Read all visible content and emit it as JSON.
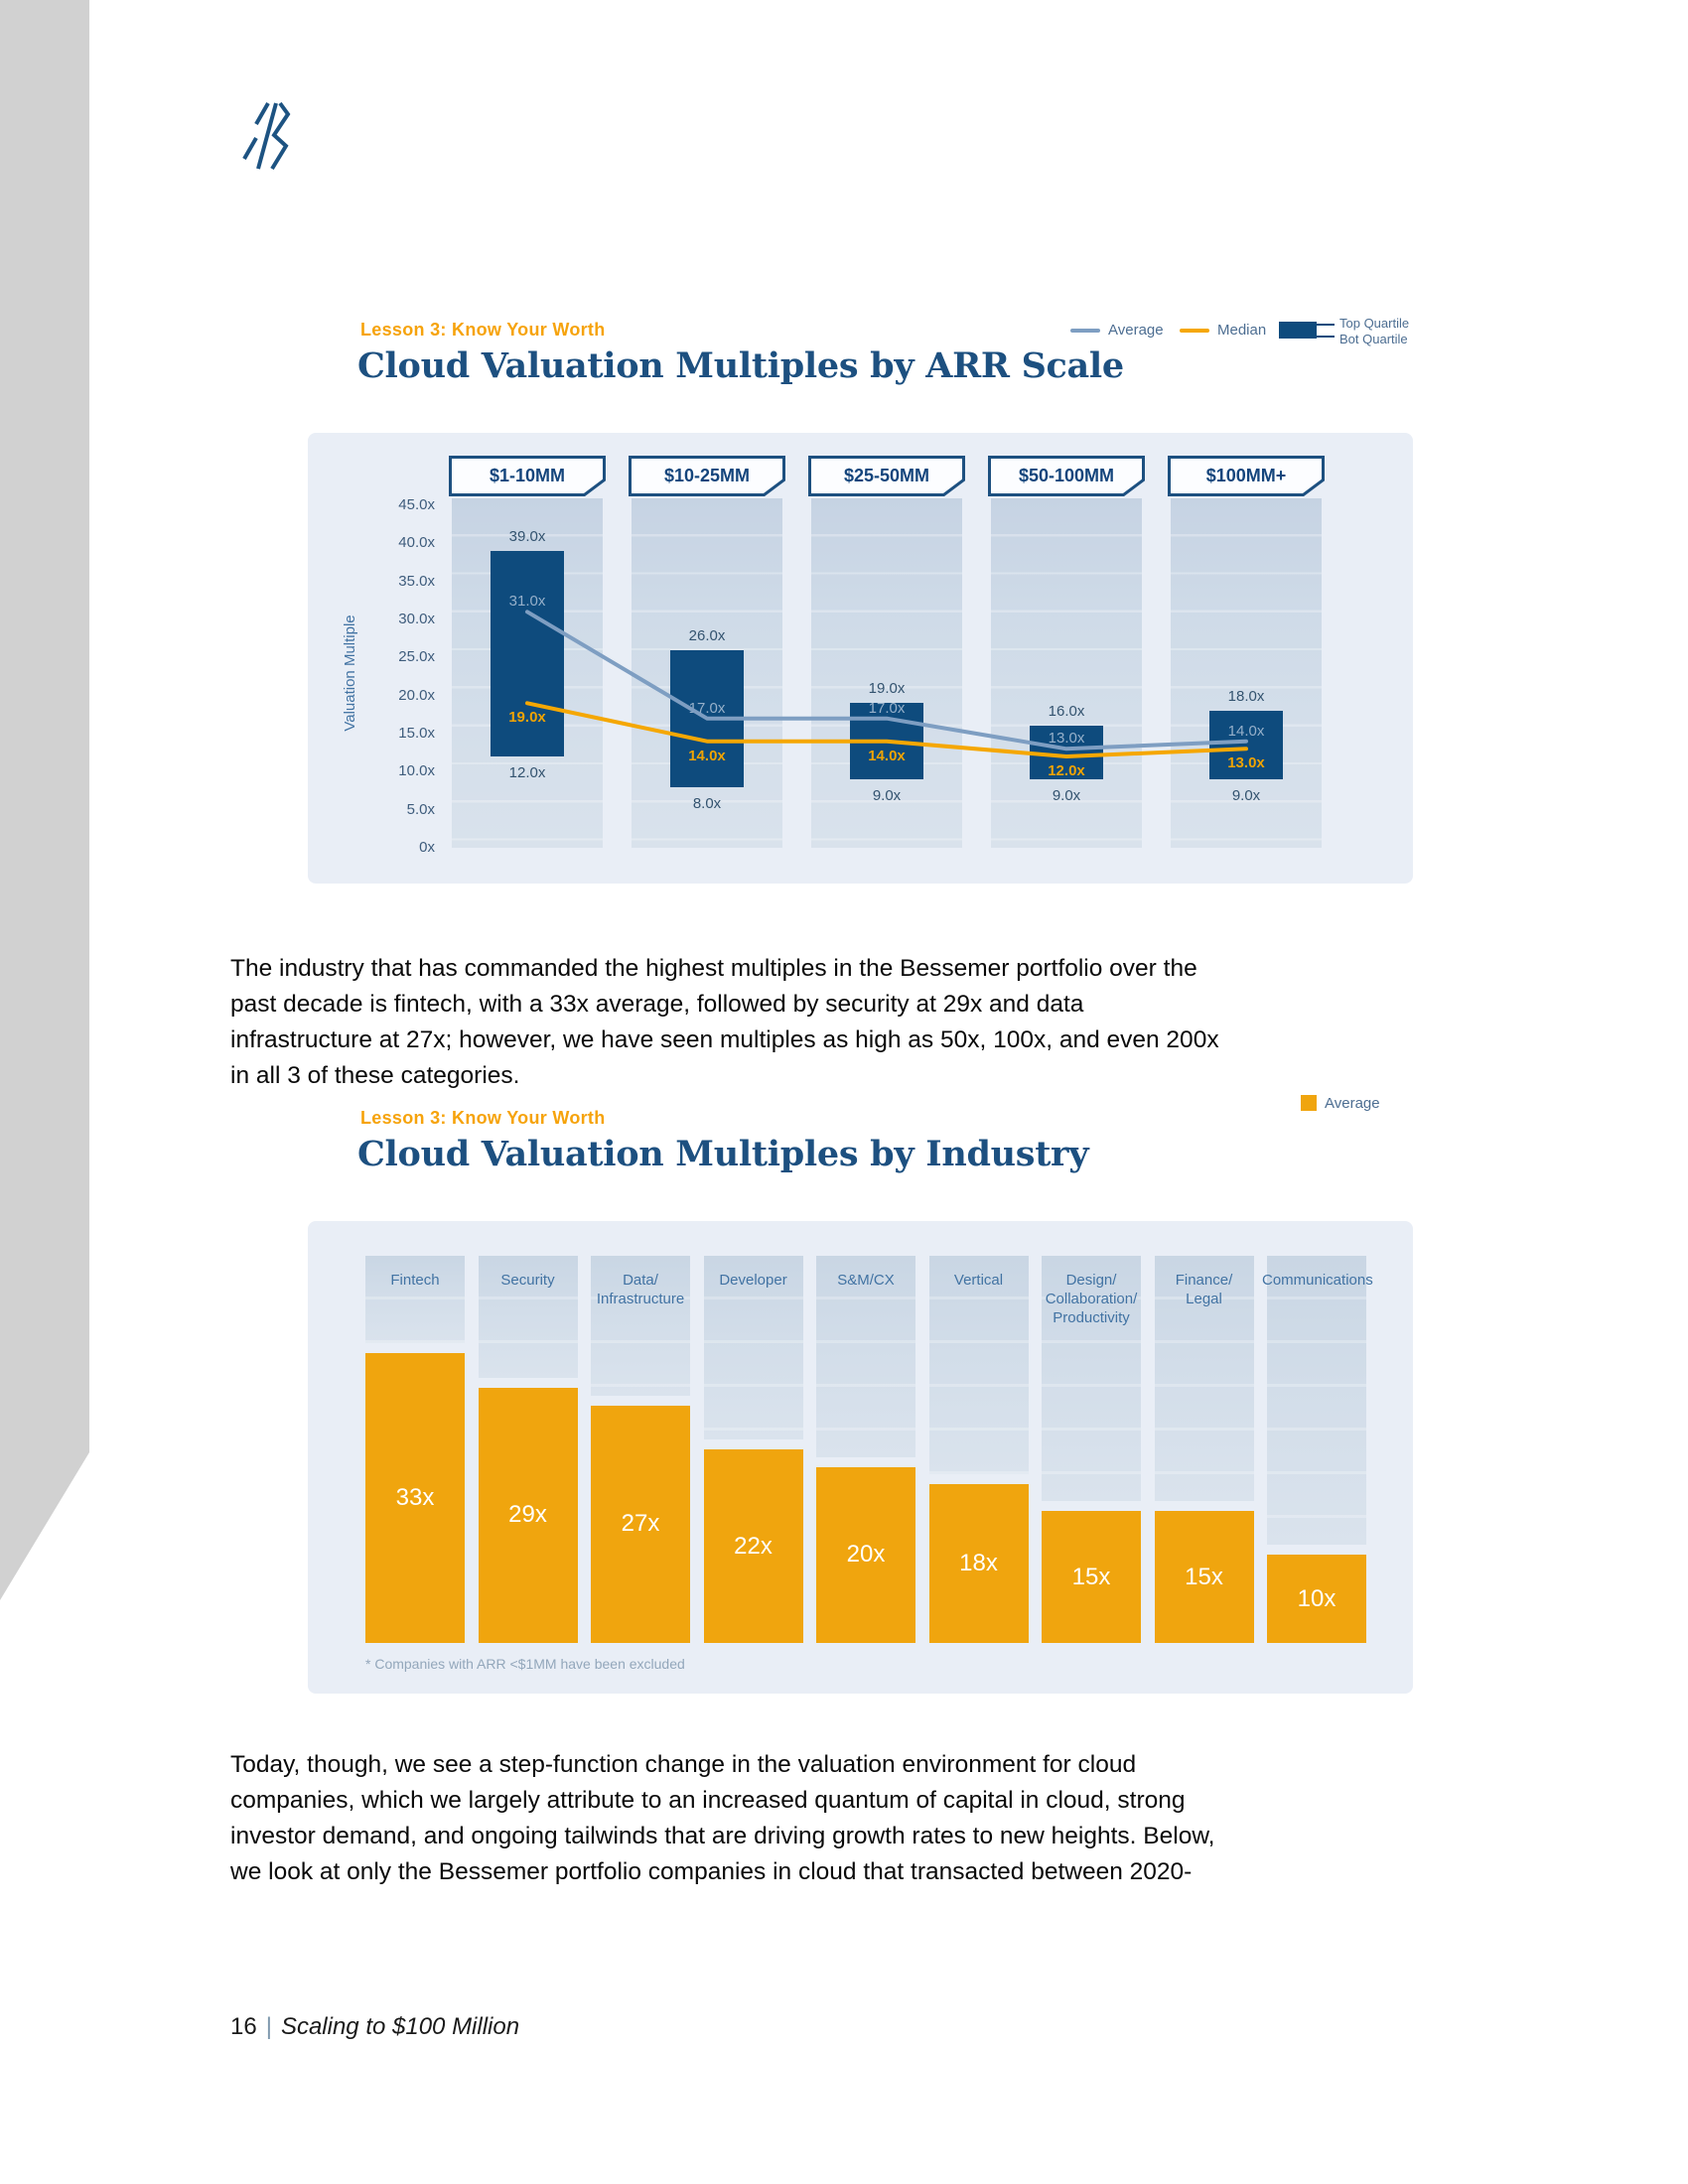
{
  "brand": {
    "logo_name": "bessemer-mark"
  },
  "sections": {
    "arr_chart": {
      "eyebrow": "Lesson 3: Know Your Worth",
      "title": "Cloud Valuation Multiples by ARR Scale",
      "legend": {
        "average_label": "Average",
        "median_label": "Median",
        "top_quartile_label": "Top Quartile",
        "bot_quartile_label": "Bot Quartile"
      }
    },
    "paragraph_1": "The industry that has commanded the highest multiples in the Bessemer portfolio over the\npast decade is fintech, with a 33x average, followed by security at 29x and data\ninfrastructure at 27x; however, we have seen multiples as high as 50x, 100x, and even 200x\nin all 3 of these categories.",
    "industry_chart": {
      "eyebrow": "Lesson 3: Know Your Worth",
      "title": "Cloud Valuation Multiples by Industry",
      "legend": {
        "average_label": "Average"
      },
      "footnote": "* Companies with ARR <$1MM have been excluded"
    },
    "paragraph_2": "Today, though, we see a step-function change in the valuation environment for cloud\ncompanies, which we largely attribute to an increased quantum of capital in cloud, strong\ninvestor demand, and ongoing tailwinds that are driving growth rates to new heights. Below,\nwe look at only the Bessemer portfolio companies in cloud that transacted between 2020-",
    "footer": {
      "page_number": "16",
      "separator": "|",
      "booklet_title": "Scaling to $100 Million"
    }
  },
  "colors": {
    "navy_bar": "#0E4B7D",
    "title_navy": "#1D5080",
    "orange": "#F0A50E",
    "median_orange": "#F5A702",
    "average_line": "#7E9EC2",
    "panel_bg": "#E9EEF6",
    "column_band": "#CFDBE8",
    "left_strip": "#D1D1D1"
  },
  "chart_data": [
    {
      "type": "bar",
      "title": "Cloud Valuation Multiples by ARR Scale",
      "categories": [
        "$1-10MM",
        "$10-25MM",
        "$25-50MM",
        "$50-100MM",
        "$100MM+"
      ],
      "series": [
        {
          "name": "Top Quartile",
          "values": [
            39,
            26,
            19,
            16,
            18
          ]
        },
        {
          "name": "Bot Quartile",
          "values": [
            12,
            8,
            9,
            9,
            9
          ]
        },
        {
          "name": "Average",
          "values": [
            31,
            17,
            17,
            13,
            14
          ]
        },
        {
          "name": "Median",
          "values": [
            19,
            14,
            14,
            12,
            13
          ]
        }
      ],
      "xlabel": "",
      "ylabel": "Valuation Multiple",
      "ylim": [
        0,
        45
      ],
      "ytick_step": 5,
      "value_suffix": ".0x",
      "zero_tick_label": "0x",
      "grid": false,
      "legend_position": "top-right"
    },
    {
      "type": "bar",
      "title": "Cloud Valuation Multiples by Industry",
      "categories": [
        "Fintech",
        "Security",
        "Data/\nInfrastructure",
        "Developer",
        "S&M/CX",
        "Vertical",
        "Design/\nCollaboration/\nProductivity",
        "Finance/\nLegal",
        "Communications"
      ],
      "values": [
        33,
        29,
        27,
        22,
        20,
        18,
        15,
        15,
        10
      ],
      "series_name": "Average",
      "xlabel": "",
      "ylabel": "",
      "ylim": [
        0,
        44
      ],
      "value_suffix": "x",
      "grid": false,
      "legend_position": "top-right",
      "footnote": "* Companies with ARR <$1MM have been excluded"
    }
  ]
}
